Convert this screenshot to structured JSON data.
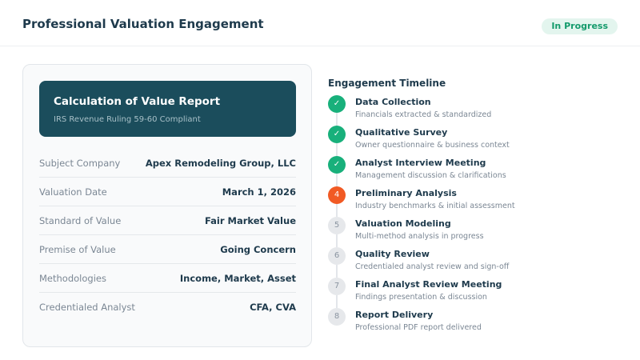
{
  "header": {
    "title": "Professional Valuation Engagement",
    "status": "In Progress"
  },
  "report": {
    "title": "Calculation of Value Report",
    "subtitle": "IRS Revenue Ruling 59-60 Compliant",
    "rows": [
      {
        "label": "Subject Company",
        "value": "Apex Remodeling Group, LLC"
      },
      {
        "label": "Valuation Date",
        "value": "March 1, 2026"
      },
      {
        "label": "Standard of Value",
        "value": "Fair Market Value"
      },
      {
        "label": "Premise of Value",
        "value": "Going Concern"
      },
      {
        "label": "Methodologies",
        "value": "Income, Market, Asset"
      },
      {
        "label": "Credentialed Analyst",
        "value": "CFA, CVA"
      }
    ]
  },
  "timeline": {
    "title": "Engagement Timeline",
    "colors": {
      "done": "#18b07b",
      "current": "#f15a24",
      "pending": "#e6e8eb"
    },
    "items": [
      {
        "marker": "✓",
        "state": "done",
        "title": "Data Collection",
        "desc": "Financials extracted & standardized"
      },
      {
        "marker": "✓",
        "state": "done",
        "title": "Qualitative Survey",
        "desc": "Owner questionnaire & business context"
      },
      {
        "marker": "✓",
        "state": "done",
        "title": "Analyst Interview Meeting",
        "desc": "Management discussion & clarifications"
      },
      {
        "marker": "4",
        "state": "cur",
        "title": "Preliminary Analysis",
        "desc": "Industry benchmarks & initial assessment"
      },
      {
        "marker": "5",
        "state": "todo",
        "title": "Valuation Modeling",
        "desc": "Multi-method analysis in progress"
      },
      {
        "marker": "6",
        "state": "todo",
        "title": "Quality Review",
        "desc": "Credentialed analyst review and sign-off"
      },
      {
        "marker": "7",
        "state": "todo",
        "title": "Final Analyst Review Meeting",
        "desc": "Findings presentation & discussion"
      },
      {
        "marker": "8",
        "state": "todo",
        "title": "Report Delivery",
        "desc": "Professional PDF report delivered"
      }
    ]
  }
}
